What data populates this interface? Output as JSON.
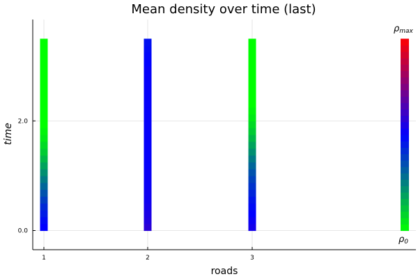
{
  "chart_data": {
    "type": "heatmap",
    "title": "Mean density over time (last)",
    "xlabel": "roads",
    "ylabel": "time",
    "x_ticks": [
      "1",
      "2",
      "3"
    ],
    "y_ticks": [
      "0.0",
      "2.0"
    ],
    "ylim": [
      -0.35,
      3.85
    ],
    "time_range": [
      0.0,
      3.5
    ],
    "grid": true,
    "colorbar": {
      "label_min_base": "ρ",
      "label_min_sub": "0",
      "label_max_base": "ρ",
      "label_max_sub": "max",
      "colors": [
        "#00ff00",
        "#0000ff",
        "#ff0000"
      ]
    },
    "series": [
      {
        "road": 1,
        "density": [
          0.5,
          0.48,
          0.45,
          0.42,
          0.38,
          0.34,
          0.3,
          0.26,
          0.22,
          0.18,
          0.14,
          0.1,
          0.07,
          0.04,
          0.02,
          0.0,
          0.0,
          0.0,
          0.0,
          0.0,
          0.0,
          0.0,
          0.0,
          0.0,
          0.0,
          0.0,
          0.0,
          0.0
        ]
      },
      {
        "road": 2,
        "density": [
          0.58,
          0.56,
          0.55,
          0.54,
          0.53,
          0.53,
          0.52,
          0.52,
          0.52,
          0.51,
          0.51,
          0.51,
          0.51,
          0.51,
          0.51,
          0.51,
          0.51,
          0.51,
          0.51,
          0.51,
          0.51,
          0.51,
          0.51,
          0.51,
          0.5,
          0.49,
          0.48,
          0.47
        ]
      },
      {
        "road": 3,
        "density": [
          0.54,
          0.52,
          0.5,
          0.48,
          0.46,
          0.43,
          0.4,
          0.37,
          0.34,
          0.3,
          0.26,
          0.22,
          0.18,
          0.14,
          0.1,
          0.07,
          0.04,
          0.02,
          0.0,
          0.0,
          0.0,
          0.0,
          0.0,
          0.0,
          0.0,
          0.0,
          0.0,
          0.0
        ]
      }
    ]
  }
}
